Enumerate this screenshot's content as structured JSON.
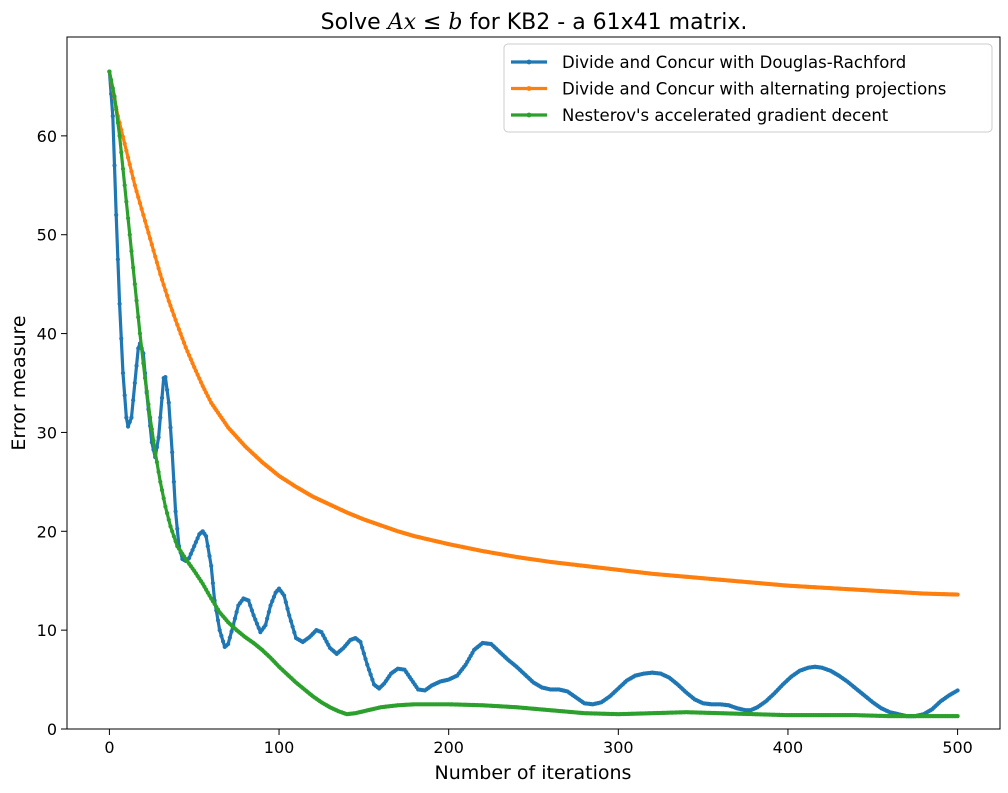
{
  "chart_data": {
    "type": "line",
    "title": {
      "prefix": "Solve ",
      "math_a": "Ax",
      "math_op": " ≤ ",
      "math_b": "b",
      "suffix": " for KB2 - a 61x41 matrix."
    },
    "xlabel": "Number of iterations",
    "ylabel": "Error measure",
    "xlim": [
      -25,
      525
    ],
    "ylim": [
      0,
      70
    ],
    "xticks": [
      0,
      100,
      200,
      300,
      400,
      500
    ],
    "yticks": [
      0,
      10,
      20,
      30,
      40,
      50,
      60
    ],
    "grid": false,
    "legend_position": "top-right",
    "series": [
      {
        "name": "Divide and Concur with Douglas-Rachford",
        "color": "#1f77b4",
        "points": [
          [
            0,
            66.5
          ],
          [
            2,
            62
          ],
          [
            4,
            52
          ],
          [
            6,
            43
          ],
          [
            8,
            36
          ],
          [
            10,
            31.5
          ],
          [
            11,
            30.6
          ],
          [
            13,
            31.5
          ],
          [
            15,
            35
          ],
          [
            17,
            38.5
          ],
          [
            18,
            39
          ],
          [
            20,
            38
          ],
          [
            22,
            34
          ],
          [
            25,
            29
          ],
          [
            27,
            27.5
          ],
          [
            29,
            29.5
          ],
          [
            31,
            33.5
          ],
          [
            32,
            35.5
          ],
          [
            33,
            35.6
          ],
          [
            35,
            33
          ],
          [
            37,
            28
          ],
          [
            39,
            22
          ],
          [
            41,
            18.5
          ],
          [
            43,
            17.2
          ],
          [
            45,
            17
          ],
          [
            47,
            17.3
          ],
          [
            50,
            18.5
          ],
          [
            53,
            19.7
          ],
          [
            55,
            20
          ],
          [
            57,
            19.5
          ],
          [
            60,
            16.5
          ],
          [
            62,
            13
          ],
          [
            65,
            10
          ],
          [
            68,
            8.3
          ],
          [
            70,
            8.6
          ],
          [
            73,
            10.5
          ],
          [
            76,
            12.5
          ],
          [
            79,
            13.2
          ],
          [
            82,
            13
          ],
          [
            85,
            11.5
          ],
          [
            89,
            9.8
          ],
          [
            92,
            10.5
          ],
          [
            95,
            12.5
          ],
          [
            98,
            13.8
          ],
          [
            100,
            14.2
          ],
          [
            103,
            13.5
          ],
          [
            106,
            11.5
          ],
          [
            110,
            9.2
          ],
          [
            114,
            8.8
          ],
          [
            118,
            9.3
          ],
          [
            122,
            10
          ],
          [
            125,
            9.8
          ],
          [
            130,
            8.2
          ],
          [
            134,
            7.6
          ],
          [
            138,
            8.2
          ],
          [
            142,
            9
          ],
          [
            145,
            9.2
          ],
          [
            148,
            8.8
          ],
          [
            152,
            6.5
          ],
          [
            156,
            4.5
          ],
          [
            159,
            4.1
          ],
          [
            162,
            4.6
          ],
          [
            166,
            5.6
          ],
          [
            170,
            6.1
          ],
          [
            174,
            6
          ],
          [
            178,
            5
          ],
          [
            182,
            4
          ],
          [
            186,
            3.9
          ],
          [
            190,
            4.4
          ],
          [
            195,
            4.8
          ],
          [
            200,
            5
          ],
          [
            205,
            5.4
          ],
          [
            210,
            6.5
          ],
          [
            215,
            8
          ],
          [
            220,
            8.7
          ],
          [
            225,
            8.6
          ],
          [
            230,
            7.8
          ],
          [
            235,
            7
          ],
          [
            240,
            6.3
          ],
          [
            245,
            5.5
          ],
          [
            250,
            4.7
          ],
          [
            255,
            4.2
          ],
          [
            260,
            4
          ],
          [
            265,
            4
          ],
          [
            270,
            3.8
          ],
          [
            275,
            3.2
          ],
          [
            280,
            2.6
          ],
          [
            285,
            2.5
          ],
          [
            290,
            2.7
          ],
          [
            295,
            3.3
          ],
          [
            300,
            4.1
          ],
          [
            305,
            4.9
          ],
          [
            310,
            5.4
          ],
          [
            315,
            5.6
          ],
          [
            320,
            5.7
          ],
          [
            325,
            5.6
          ],
          [
            330,
            5.2
          ],
          [
            335,
            4.5
          ],
          [
            340,
            3.7
          ],
          [
            345,
            3
          ],
          [
            350,
            2.6
          ],
          [
            355,
            2.5
          ],
          [
            360,
            2.5
          ],
          [
            365,
            2.4
          ],
          [
            370,
            2.1
          ],
          [
            375,
            1.9
          ],
          [
            378,
            1.9
          ],
          [
            382,
            2.2
          ],
          [
            387,
            2.8
          ],
          [
            392,
            3.6
          ],
          [
            397,
            4.5
          ],
          [
            402,
            5.3
          ],
          [
            407,
            5.9
          ],
          [
            412,
            6.2
          ],
          [
            416,
            6.3
          ],
          [
            420,
            6.2
          ],
          [
            425,
            5.9
          ],
          [
            430,
            5.4
          ],
          [
            435,
            4.8
          ],
          [
            440,
            4.1
          ],
          [
            445,
            3.4
          ],
          [
            450,
            2.7
          ],
          [
            455,
            2.1
          ],
          [
            460,
            1.7
          ],
          [
            465,
            1.5
          ],
          [
            470,
            1.3
          ],
          [
            475,
            1.3
          ],
          [
            480,
            1.5
          ],
          [
            485,
            2
          ],
          [
            490,
            2.8
          ],
          [
            495,
            3.4
          ],
          [
            500,
            3.9
          ]
        ]
      },
      {
        "name": "Divide and Concur with alternating projections",
        "color": "#ff7f0e",
        "points": [
          [
            0,
            66.5
          ],
          [
            5,
            62
          ],
          [
            10,
            58.5
          ],
          [
            15,
            55
          ],
          [
            20,
            52
          ],
          [
            25,
            49
          ],
          [
            30,
            46
          ],
          [
            35,
            43.3
          ],
          [
            40,
            40.9
          ],
          [
            45,
            38.6
          ],
          [
            50,
            36.6
          ],
          [
            55,
            34.7
          ],
          [
            60,
            33
          ],
          [
            70,
            30.5
          ],
          [
            80,
            28.6
          ],
          [
            90,
            27
          ],
          [
            100,
            25.6
          ],
          [
            110,
            24.5
          ],
          [
            120,
            23.5
          ],
          [
            130,
            22.7
          ],
          [
            140,
            21.9
          ],
          [
            150,
            21.2
          ],
          [
            160,
            20.6
          ],
          [
            170,
            20
          ],
          [
            180,
            19.5
          ],
          [
            200,
            18.7
          ],
          [
            220,
            18
          ],
          [
            240,
            17.4
          ],
          [
            260,
            16.9
          ],
          [
            280,
            16.5
          ],
          [
            300,
            16.1
          ],
          [
            320,
            15.7
          ],
          [
            340,
            15.4
          ],
          [
            360,
            15.1
          ],
          [
            380,
            14.8
          ],
          [
            400,
            14.5
          ],
          [
            420,
            14.3
          ],
          [
            440,
            14.1
          ],
          [
            460,
            13.9
          ],
          [
            480,
            13.7
          ],
          [
            500,
            13.6
          ]
        ]
      },
      {
        "name": "Nesterov's accelerated gradient decent",
        "color": "#2ca02c",
        "points": [
          [
            0,
            66.5
          ],
          [
            3,
            64
          ],
          [
            6,
            60
          ],
          [
            9,
            55
          ],
          [
            12,
            50
          ],
          [
            15,
            45
          ],
          [
            18,
            40
          ],
          [
            21,
            35.5
          ],
          [
            24,
            31.5
          ],
          [
            27,
            28
          ],
          [
            30,
            25
          ],
          [
            33,
            22.5
          ],
          [
            36,
            20.5
          ],
          [
            40,
            18.5
          ],
          [
            45,
            17.2
          ],
          [
            50,
            16
          ],
          [
            55,
            14.7
          ],
          [
            60,
            13.2
          ],
          [
            65,
            11.8
          ],
          [
            70,
            10.8
          ],
          [
            75,
            10
          ],
          [
            80,
            9.3
          ],
          [
            85,
            8.7
          ],
          [
            90,
            8
          ],
          [
            95,
            7.2
          ],
          [
            100,
            6.3
          ],
          [
            105,
            5.5
          ],
          [
            110,
            4.7
          ],
          [
            115,
            4
          ],
          [
            120,
            3.3
          ],
          [
            125,
            2.7
          ],
          [
            130,
            2.2
          ],
          [
            135,
            1.8
          ],
          [
            140,
            1.5
          ],
          [
            145,
            1.6
          ],
          [
            150,
            1.8
          ],
          [
            160,
            2.2
          ],
          [
            170,
            2.4
          ],
          [
            180,
            2.5
          ],
          [
            200,
            2.5
          ],
          [
            220,
            2.4
          ],
          [
            240,
            2.2
          ],
          [
            260,
            1.9
          ],
          [
            280,
            1.6
          ],
          [
            300,
            1.5
          ],
          [
            320,
            1.6
          ],
          [
            340,
            1.7
          ],
          [
            360,
            1.6
          ],
          [
            380,
            1.5
          ],
          [
            400,
            1.4
          ],
          [
            420,
            1.4
          ],
          [
            440,
            1.4
          ],
          [
            460,
            1.3
          ],
          [
            480,
            1.3
          ],
          [
            500,
            1.3
          ]
        ]
      }
    ]
  }
}
